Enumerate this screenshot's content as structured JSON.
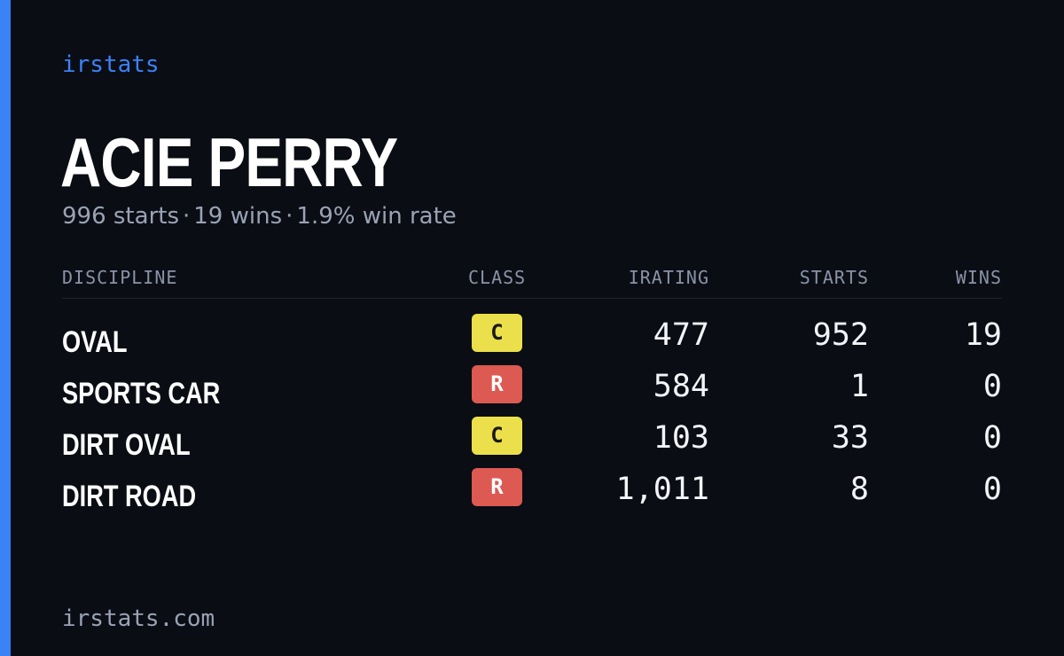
{
  "brand": "irstats",
  "driver": {
    "name": "ACIE PERRY",
    "summary": {
      "starts": "996 starts",
      "wins": "19 wins",
      "win_rate": "1.9% win rate",
      "separator": "·"
    }
  },
  "table": {
    "columns": {
      "discipline": "DISCIPLINE",
      "class": "CLASS",
      "irating": "IRATING",
      "starts": "STARTS",
      "wins": "WINS"
    },
    "rows": [
      {
        "discipline": "OVAL",
        "class": "C",
        "class_color": "#ebe04b",
        "class_text_color": "#1a1a1a",
        "irating": "477",
        "starts": "952",
        "wins": "19"
      },
      {
        "discipline": "SPORTS CAR",
        "class": "R",
        "class_color": "#dc5a52",
        "class_text_color": "#ffffff",
        "irating": "584",
        "starts": "1",
        "wins": "0"
      },
      {
        "discipline": "DIRT OVAL",
        "class": "C",
        "class_color": "#ebe04b",
        "class_text_color": "#1a1a1a",
        "irating": "103",
        "starts": "33",
        "wins": "0"
      },
      {
        "discipline": "DIRT ROAD",
        "class": "R",
        "class_color": "#dc5a52",
        "class_text_color": "#ffffff",
        "irating": "1,011",
        "starts": "8",
        "wins": "0"
      }
    ]
  },
  "footer": "irstats.com",
  "colors": {
    "background": "#0a0d14",
    "accent": "#3b82f6",
    "muted_text": "#9aa3b5"
  }
}
